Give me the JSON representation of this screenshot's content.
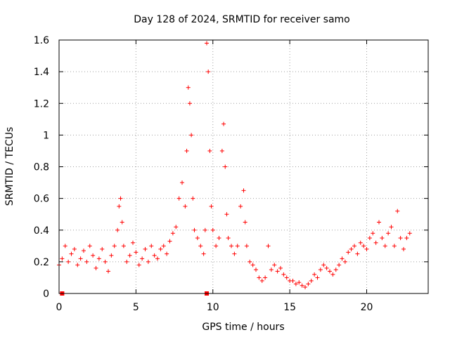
{
  "chart_data": {
    "type": "scatter",
    "title": "Day 128 of 2024, SRMTID for receiver samo",
    "xlabel": "GPS time / hours",
    "ylabel": "SRMTID / TECUs",
    "xlim": [
      0,
      24
    ],
    "ylim": [
      0,
      1.6
    ],
    "xticks": [
      0,
      5,
      10,
      15,
      20
    ],
    "xtick_labels": [
      "0",
      "5",
      "10",
      "15",
      "20"
    ],
    "yticks": [
      0,
      0.2,
      0.4,
      0.6,
      0.8,
      1.0,
      1.2,
      1.4,
      1.6
    ],
    "ytick_labels": [
      "0",
      "0.2",
      "0.4",
      "0.6",
      "0.8",
      "1",
      "1.2",
      "1.4",
      "1.6"
    ],
    "grid": true,
    "marker": "plus",
    "color": "#ff0000",
    "zero_markers_x": [
      0.2,
      9.6
    ],
    "series": [
      {
        "name": "SRMTID",
        "x": [
          0.0,
          0.2,
          0.4,
          0.6,
          0.8,
          1.0,
          1.2,
          1.4,
          1.6,
          1.8,
          2.0,
          2.2,
          2.4,
          2.6,
          2.8,
          3.0,
          3.2,
          3.4,
          3.6,
          3.8,
          3.9,
          4.0,
          4.1,
          4.2,
          4.4,
          4.6,
          4.8,
          5.0,
          5.2,
          5.4,
          5.6,
          5.8,
          6.0,
          6.2,
          6.4,
          6.6,
          6.8,
          7.0,
          7.2,
          7.4,
          7.6,
          7.8,
          8.0,
          8.2,
          8.3,
          8.4,
          8.5,
          8.6,
          8.7,
          8.8,
          9.0,
          9.2,
          9.4,
          9.5,
          9.6,
          9.7,
          9.8,
          9.9,
          10.0,
          10.2,
          10.4,
          10.6,
          10.7,
          10.8,
          10.9,
          11.0,
          11.2,
          11.4,
          11.6,
          11.8,
          12.0,
          12.1,
          12.2,
          12.4,
          12.6,
          12.8,
          13.0,
          13.2,
          13.4,
          13.6,
          13.8,
          14.0,
          14.2,
          14.4,
          14.6,
          14.8,
          15.0,
          15.2,
          15.4,
          15.6,
          15.8,
          16.0,
          16.2,
          16.4,
          16.6,
          16.8,
          17.0,
          17.2,
          17.4,
          17.6,
          17.8,
          18.0,
          18.2,
          18.4,
          18.6,
          18.8,
          19.0,
          19.2,
          19.4,
          19.6,
          19.8,
          20.0,
          20.2,
          20.4,
          20.6,
          20.8,
          21.0,
          21.2,
          21.4,
          21.6,
          21.8,
          22.0,
          22.2,
          22.4,
          22.6,
          22.8
        ],
        "y": [
          0.18,
          0.22,
          0.3,
          0.2,
          0.25,
          0.28,
          0.18,
          0.22,
          0.27,
          0.2,
          0.3,
          0.24,
          0.16,
          0.22,
          0.28,
          0.2,
          0.14,
          0.24,
          0.3,
          0.4,
          0.55,
          0.6,
          0.45,
          0.3,
          0.2,
          0.24,
          0.32,
          0.26,
          0.18,
          0.22,
          0.28,
          0.2,
          0.3,
          0.24,
          0.22,
          0.28,
          0.3,
          0.25,
          0.33,
          0.38,
          0.42,
          0.6,
          0.7,
          0.55,
          0.9,
          1.3,
          1.2,
          1.0,
          0.6,
          0.4,
          0.35,
          0.3,
          0.25,
          0.4,
          1.58,
          1.4,
          0.9,
          0.55,
          0.4,
          0.3,
          0.35,
          0.9,
          1.07,
          0.8,
          0.5,
          0.35,
          0.3,
          0.25,
          0.3,
          0.55,
          0.65,
          0.45,
          0.3,
          0.2,
          0.18,
          0.15,
          0.1,
          0.08,
          0.1,
          0.3,
          0.15,
          0.18,
          0.14,
          0.16,
          0.12,
          0.1,
          0.08,
          0.08,
          0.06,
          0.07,
          0.05,
          0.04,
          0.06,
          0.08,
          0.12,
          0.1,
          0.15,
          0.18,
          0.16,
          0.14,
          0.12,
          0.15,
          0.18,
          0.22,
          0.2,
          0.26,
          0.28,
          0.3,
          0.25,
          0.32,
          0.3,
          0.28,
          0.35,
          0.38,
          0.32,
          0.45,
          0.35,
          0.3,
          0.38,
          0.42,
          0.3,
          0.52,
          0.35,
          0.28,
          0.35,
          0.38
        ]
      }
    ]
  }
}
